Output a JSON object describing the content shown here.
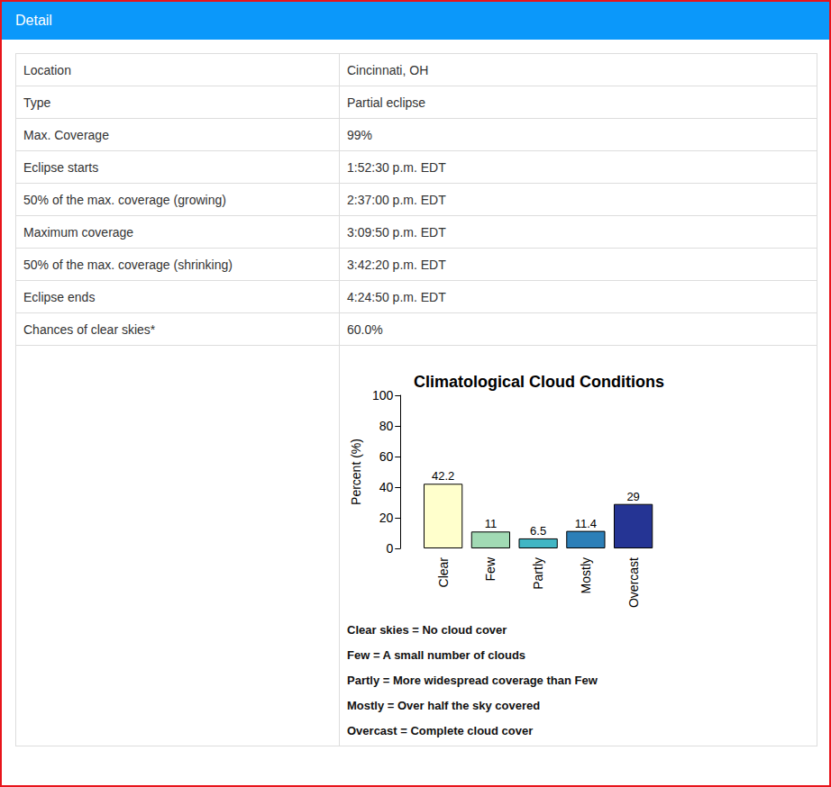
{
  "header": {
    "title": "Detail"
  },
  "table": {
    "rows": [
      [
        "Location",
        "Cincinnati, OH"
      ],
      [
        "Type",
        "Partial eclipse"
      ],
      [
        "Max. Coverage",
        "99%"
      ],
      [
        "Eclipse starts",
        "1:52:30 p.m. EDT"
      ],
      [
        "50% of the max. coverage (growing)",
        "2:37:00 p.m. EDT"
      ],
      [
        "Maximum coverage",
        "3:09:50 p.m. EDT"
      ],
      [
        "50% of the max. coverage (shrinking)",
        "3:42:20 p.m. EDT"
      ],
      [
        "Eclipse ends",
        "4:24:50 p.m. EDT"
      ],
      [
        "Chances of clear skies*",
        "60.0%"
      ]
    ]
  },
  "chart_data": {
    "type": "bar",
    "title": "Climatological Cloud Conditions",
    "y_label": "Percent (%)",
    "categories": [
      "Clear",
      "Few",
      "Partly",
      "Mostly",
      "Overcast"
    ],
    "values": [
      42.2,
      11,
      6.5,
      11.4,
      29
    ],
    "colors": [
      "#ffffcc",
      "#a1dab4",
      "#41b6c4",
      "#2c7fb8",
      "#253494"
    ],
    "ylim": [
      0,
      100
    ],
    "yticks": [
      0,
      20,
      40,
      60,
      80,
      100
    ],
    "grid": false,
    "data_labels": true
  },
  "notes": [
    "Clear skies = No cloud cover",
    "Few = A small number of clouds",
    "Partly = More widespread coverage than Few",
    "Mostly = Over half the sky covered",
    "Overcast = Complete cloud cover"
  ]
}
